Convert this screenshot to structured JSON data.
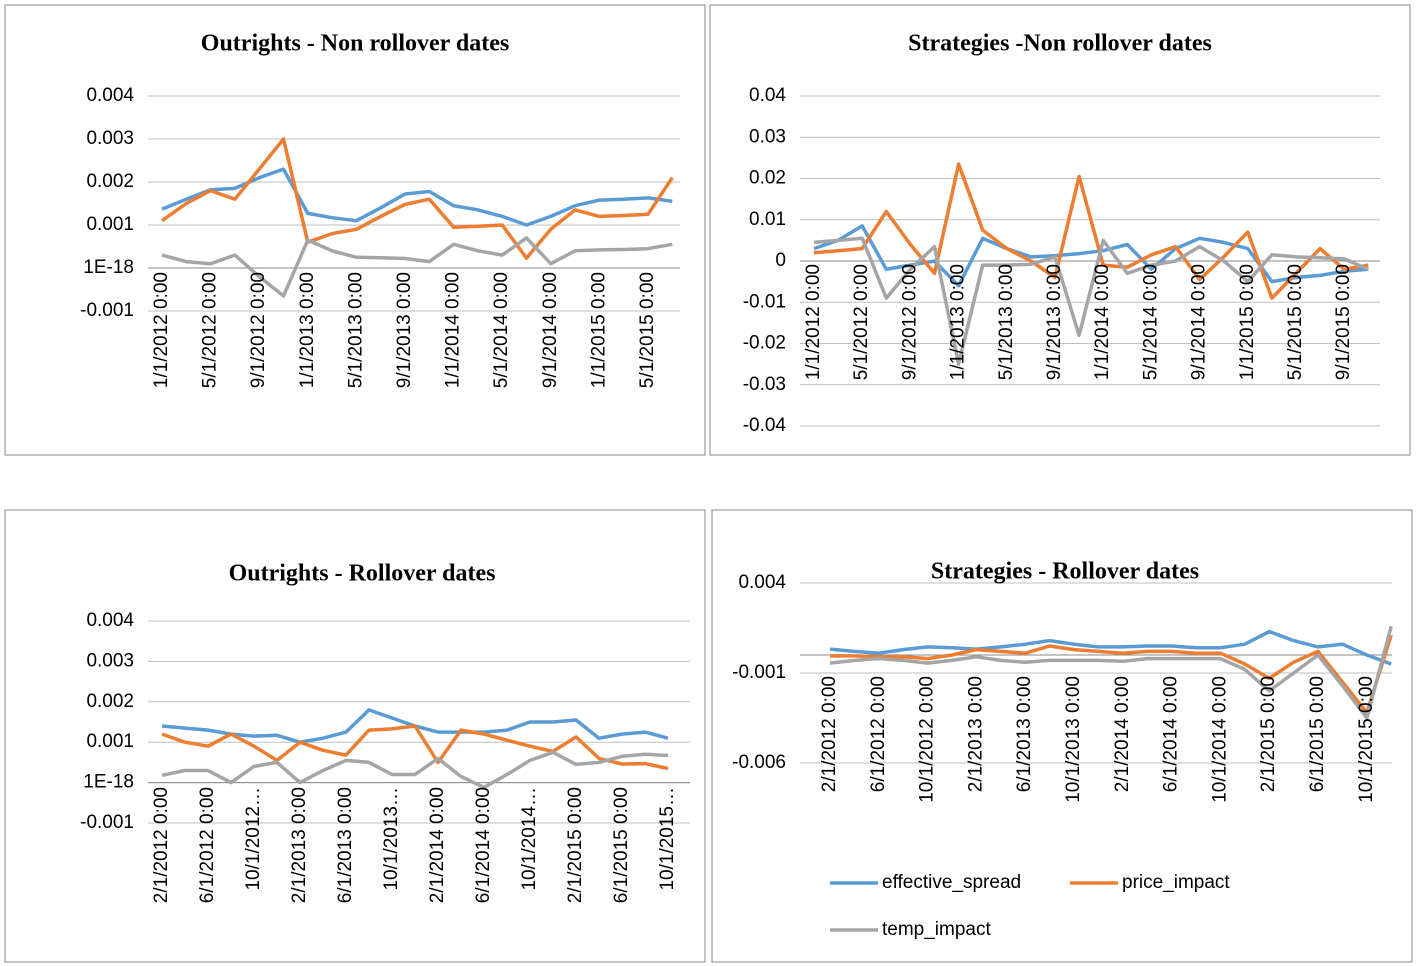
{
  "chart_data": [
    {
      "type": "line",
      "title": "Outrights - Non rollover dates",
      "categories": [
        "1/1/2012 0:00",
        null,
        "5/1/2012 0:00",
        null,
        "9/1/2012 0:00",
        null,
        "1/1/2013 0:00",
        null,
        "5/1/2013 0:00",
        null,
        "9/1/2013 0:00",
        null,
        "1/1/2014 0:00",
        null,
        "5/1/2014 0:00",
        null,
        "9/1/2014 0:00",
        null,
        "1/1/2015 0:00",
        null,
        "5/1/2015 0:00",
        null
      ],
      "series": [
        {
          "color": "#5b9bd5",
          "values": [
            0.00137,
            0.0016,
            0.00182,
            0.00185,
            0.0021,
            0.0023,
            0.00127,
            0.00117,
            0.0011,
            0.0014,
            0.00172,
            0.00178,
            0.00145,
            0.00135,
            0.0012,
            0.001,
            0.0012,
            0.00145,
            0.00158,
            0.0016,
            0.00163,
            0.00155
          ]
        },
        {
          "color": "#ed7d31",
          "values": [
            0.0011,
            0.0015,
            0.0018,
            0.0016,
            0.0023,
            0.003,
            0.0006,
            0.0008,
            0.0009,
            0.0012,
            0.00148,
            0.0016,
            0.00095,
            0.00097,
            0.001,
            0.00023,
            0.0009,
            0.00135,
            0.0012,
            0.00122,
            0.00125,
            0.0021
          ]
        },
        {
          "color": "#a5a5a5",
          "values": [
            0.0003,
            0.00015,
            0.0001,
            0.0003,
            -0.0002,
            -0.00065,
            0.00065,
            0.0004,
            0.00025,
            0.00024,
            0.00022,
            0.00015,
            0.00055,
            0.0004,
            0.0003,
            0.0007,
            0.0001,
            0.0004,
            0.00042,
            0.00043,
            0.00045,
            0.00055
          ]
        }
      ],
      "ylim": [
        -0.001,
        0.004
      ],
      "yticks": [
        -0.001,
        {
          "value": 1e-18,
          "label": "1E-18"
        },
        0.001,
        0.002,
        0.003,
        0.004
      ],
      "grid": true
    },
    {
      "type": "line",
      "title": "Strategies -Non rollover dates",
      "categories": [
        "1/1/2012 0:00",
        null,
        "5/1/2012 0:00",
        null,
        "9/1/2012 0:00",
        null,
        "1/1/2013 0:00",
        null,
        "5/1/2013 0:00",
        null,
        "9/1/2013 0:00",
        null,
        "1/1/2014 0:00",
        null,
        "5/1/2014 0:00",
        null,
        "9/1/2014 0:00",
        null,
        "1/1/2015 0:00",
        null,
        "5/1/2015 0:00",
        null,
        "9/1/2015 0:00",
        null
      ],
      "series": [
        {
          "color": "#5b9bd5",
          "values": [
            0.003,
            0.005,
            0.0085,
            -0.002,
            -0.001,
            0.0,
            -0.006,
            0.0055,
            0.003,
            0.001,
            0.0013,
            0.0018,
            0.0025,
            0.004,
            -0.002,
            0.003,
            0.0055,
            0.0045,
            0.003,
            -0.005,
            -0.004,
            -0.0035,
            -0.0025,
            -0.002
          ]
        },
        {
          "color": "#ed7d31",
          "values": [
            0.002,
            0.0025,
            0.003,
            0.012,
            0.004,
            -0.003,
            0.0235,
            0.0075,
            0.003,
            0.0,
            -0.004,
            0.0205,
            -0.001,
            -0.0015,
            0.0015,
            0.0035,
            -0.0045,
            0.001,
            0.007,
            -0.009,
            -0.003,
            0.003,
            -0.002,
            -0.001
          ]
        },
        {
          "color": "#a5a5a5",
          "values": [
            0.0045,
            0.005,
            0.0055,
            -0.009,
            -0.002,
            0.0035,
            -0.025,
            -0.001,
            -0.001,
            -0.0008,
            0.001,
            -0.018,
            0.005,
            -0.003,
            -0.001,
            0.0,
            0.0035,
            0.0,
            -0.005,
            0.0015,
            0.001,
            0.0008,
            0.0005,
            -0.002
          ]
        }
      ],
      "ylim": [
        -0.04,
        0.04
      ],
      "yticks": [
        -0.04,
        -0.03,
        -0.02,
        -0.01,
        0,
        0.01,
        0.02,
        0.03,
        0.04
      ],
      "grid": true
    },
    {
      "type": "line",
      "title": "Outrights - Rollover dates",
      "categories": [
        "2/1/2012 0:00",
        null,
        "6/1/2012 0:00",
        null,
        "10/1/2012…",
        null,
        "2/1/2013 0:00",
        null,
        "6/1/2013 0:00",
        null,
        "10/1/2013…",
        null,
        "2/1/2014 0:00",
        null,
        "6/1/2014 0:00",
        null,
        "10/1/2014…",
        null,
        "2/1/2015 0:00",
        null,
        "6/1/2015 0:00",
        null,
        "10/1/2015…"
      ],
      "series": [
        {
          "color": "#5b9bd5",
          "values": [
            0.0014,
            0.00135,
            0.0013,
            0.0012,
            0.00115,
            0.00117,
            0.001,
            0.0011,
            0.00125,
            0.0018,
            0.0016,
            0.0014,
            0.00125,
            0.00125,
            0.00125,
            0.0013,
            0.0015,
            0.0015,
            0.00155,
            0.0011,
            0.0012,
            0.00125,
            0.0011
          ]
        },
        {
          "color": "#ed7d31",
          "values": [
            0.0012,
            0.001,
            0.0009,
            0.0012,
            0.0009,
            0.00055,
            0.001,
            0.0008,
            0.00068,
            0.0013,
            0.00133,
            0.0014,
            0.0005,
            0.0013,
            0.0012,
            0.00105,
            0.0009,
            0.00077,
            0.00113,
            0.0006,
            0.00046,
            0.00047,
            0.00035
          ]
        },
        {
          "color": "#a5a5a5",
          "values": [
            0.00018,
            0.0003,
            0.0003,
            0.0,
            0.0004,
            0.0005,
            0.0,
            0.0003,
            0.00055,
            0.0005,
            0.0002,
            0.0002,
            0.0006,
            0.00015,
            -0.00012,
            0.0002,
            0.00055,
            0.00075,
            0.00045,
            0.0005,
            0.00065,
            0.0007,
            0.00067
          ]
        }
      ],
      "ylim": [
        -0.001,
        0.004
      ],
      "yticks": [
        -0.001,
        {
          "value": 1e-18,
          "label": "1E-18"
        },
        0.001,
        0.002,
        0.003,
        0.004
      ],
      "grid": true
    },
    {
      "type": "line",
      "title": "Strategies - Rollover dates",
      "categories": [
        "2/1/2012 0:00",
        null,
        "6/1/2012 0:00",
        null,
        "10/1/2012 0:00",
        null,
        "2/1/2013 0:00",
        null,
        "6/1/2013 0:00",
        null,
        "10/1/2013 0:00",
        null,
        "2/1/2014 0:00",
        null,
        "6/1/2014 0:00",
        null,
        "10/1/2014 0:00",
        null,
        "2/1/2015 0:00",
        null,
        "6/1/2015 0:00",
        null,
        "10/1/2015 0:00",
        null
      ],
      "series": [
        {
          "name": "effective_spread",
          "color": "#5b9bd5",
          "values": [
            0.00033,
            0.0002,
            0.0001,
            0.0003,
            0.00045,
            0.0004,
            0.00033,
            0.00045,
            0.0006,
            0.0008,
            0.0006,
            0.00045,
            0.00045,
            0.0005,
            0.0005,
            0.0004,
            0.0004,
            0.0006,
            0.0013,
            0.0008,
            0.00045,
            0.0006,
            0.0,
            -0.0005
          ]
        },
        {
          "name": "price_impact",
          "color": "#ed7d31",
          "values": [
            -5e-05,
            -5e-05,
            -0.0001,
            -0.0001,
            -0.0002,
            0.0,
            0.0003,
            0.0002,
            0.0001,
            0.0005,
            0.0003,
            0.0002,
            0.0001,
            0.0002,
            0.0002,
            0.0001,
            0.0001,
            -0.0005,
            -0.0013,
            -0.0004,
            0.0002,
            -0.0015,
            -0.0032,
            0.0011
          ]
        },
        {
          "name": "temp_impact",
          "color": "#a5a5a5",
          "values": [
            -0.00045,
            -0.0003,
            -0.0002,
            -0.0003,
            -0.00045,
            -0.0003,
            -0.0001,
            -0.0003,
            -0.0004,
            -0.0003,
            -0.0003,
            -0.0003,
            -0.00035,
            -0.0002,
            -0.0002,
            -0.0002,
            -0.0002,
            -0.0008,
            -0.002,
            -0.001,
            0.0,
            -0.0017,
            -0.0035,
            0.0016
          ]
        }
      ],
      "ylim": [
        -0.006,
        0.004
      ],
      "yticks": [
        -0.006,
        -0.001,
        0.004
      ],
      "grid": true,
      "legend": "bottom"
    }
  ]
}
